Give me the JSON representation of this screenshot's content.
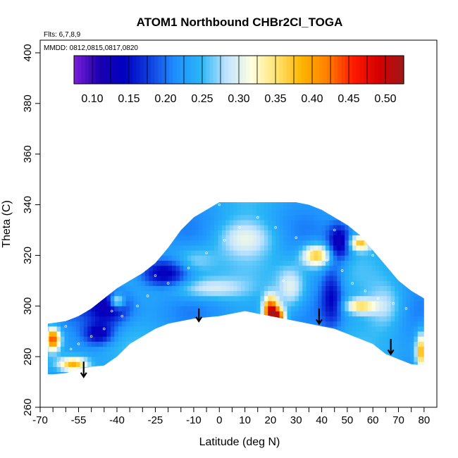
{
  "chart_data": {
    "type": "heatmap",
    "title": "ATOM1 Northbound CHBr2Cl_TOGA",
    "annotations": [
      "Flts: 6,7,8,9",
      "MMDD: 0812,0815,0817,0820"
    ],
    "xlabel": "Latitude (deg N)",
    "ylabel": "Theta (C)",
    "xlim": [
      -70,
      85
    ],
    "ylim": [
      260,
      405
    ],
    "x_ticks": [
      -70,
      -65,
      -60,
      -55,
      -50,
      -45,
      -40,
      -35,
      -30,
      -25,
      -20,
      -15,
      -10,
      -5,
      0,
      5,
      10,
      15,
      20,
      25,
      30,
      35,
      40,
      45,
      50,
      55,
      60,
      65,
      70,
      75,
      80
    ],
    "x_tick_labels": [
      "-70",
      "",
      "",
      "-55",
      "",
      "",
      "-40",
      "",
      "",
      "-25",
      "",
      "",
      "-10",
      "",
      "0",
      "",
      "10",
      "",
      "20",
      "",
      "30",
      "",
      "40",
      "",
      "50",
      "",
      "60",
      "",
      "70",
      "",
      "80"
    ],
    "y_ticks": [
      260,
      280,
      300,
      320,
      340,
      360,
      380,
      400
    ],
    "y_tick_labels": [
      "260",
      "280",
      "300",
      "320",
      "340",
      "360",
      "380",
      "400"
    ],
    "colorbar": {
      "ticks": [
        0.1,
        0.15,
        0.2,
        0.25,
        0.3,
        0.35,
        0.4,
        0.45,
        0.5
      ],
      "tick_labels": [
        "0.10",
        "0.15",
        "0.20",
        "0.25",
        "0.30",
        "0.35",
        "0.40",
        "0.45",
        "0.50"
      ],
      "range": [
        0.075,
        0.525
      ],
      "colors": [
        "#7b1fd6",
        "#1a00b0",
        "#0000c0",
        "#1040e0",
        "#1e90ff",
        "#29b6f6",
        "#bfe3ff",
        "#ffffe0",
        "#ffe36e",
        "#ffb300",
        "#ff7f00",
        "#ff1a00",
        "#d40000",
        "#a01818"
      ]
    },
    "lower_boundary": [
      [
        -67,
        273
      ],
      [
        -65,
        273
      ],
      [
        -60,
        273.5
      ],
      [
        -55,
        275
      ],
      [
        -50,
        276
      ],
      [
        -45,
        276.5
      ],
      [
        -40,
        280
      ],
      [
        -35,
        285
      ],
      [
        -30,
        288
      ],
      [
        -25,
        291
      ],
      [
        -20,
        293
      ],
      [
        -15,
        294
      ],
      [
        -10,
        295
      ],
      [
        -5,
        295.5
      ],
      [
        0,
        296
      ],
      [
        5,
        297
      ],
      [
        10,
        298
      ],
      [
        15,
        297
      ],
      [
        20,
        296
      ],
      [
        25,
        295
      ],
      [
        30,
        294
      ],
      [
        35,
        293
      ],
      [
        40,
        292
      ],
      [
        45,
        291
      ],
      [
        50,
        289
      ],
      [
        55,
        287
      ],
      [
        60,
        285
      ],
      [
        65,
        281
      ],
      [
        70,
        279
      ],
      [
        75,
        277
      ],
      [
        80,
        276.5
      ]
    ],
    "upper_boundary": [
      [
        -67,
        293
      ],
      [
        -60,
        294
      ],
      [
        -55,
        296
      ],
      [
        -50,
        299
      ],
      [
        -45,
        303
      ],
      [
        -40,
        307
      ],
      [
        -35,
        310
      ],
      [
        -30,
        313
      ],
      [
        -25,
        317
      ],
      [
        -20,
        323
      ],
      [
        -15,
        330
      ],
      [
        -10,
        335
      ],
      [
        -5,
        338
      ],
      [
        0,
        341
      ],
      [
        5,
        341
      ],
      [
        10,
        341
      ],
      [
        15,
        341
      ],
      [
        20,
        341
      ],
      [
        25,
        341
      ],
      [
        30,
        341
      ],
      [
        35,
        340
      ],
      [
        40,
        338
      ],
      [
        45,
        335
      ],
      [
        50,
        332
      ],
      [
        55,
        328
      ],
      [
        60,
        322
      ],
      [
        65,
        316
      ],
      [
        70,
        310
      ],
      [
        75,
        306
      ],
      [
        80,
        303
      ]
    ],
    "arrows_lat": [
      -53,
      -8,
      39,
      67
    ],
    "arrow_theta_top": [
      278,
      299,
      299,
      287
    ],
    "arrow_theta_bottom": [
      272,
      294,
      293,
      281
    ]
  }
}
